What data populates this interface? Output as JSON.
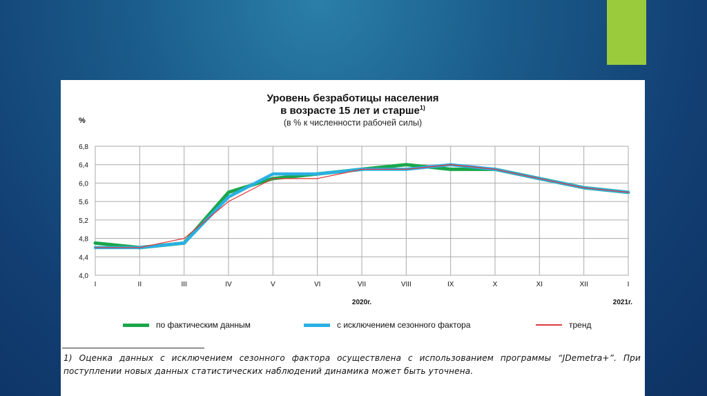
{
  "slide": {
    "accent_color": "#9acb3c",
    "background_color": "#1a5b8a"
  },
  "header": {
    "title_line1": "Уровень безработицы населения",
    "title_line2": "в возрасте 15 лет и старше",
    "title_footnote_mark": "1)",
    "subtitle": "(в % к численности рабочей силы)",
    "unit": "%"
  },
  "chart_data": {
    "type": "line",
    "categories": [
      "I",
      "II",
      "III",
      "IV",
      "V",
      "VI",
      "VII",
      "VIII",
      "IX",
      "X",
      "XI",
      "XII",
      "I"
    ],
    "year_labels": [
      {
        "label": "2020г.",
        "category_index": 6
      },
      {
        "label": "2021г.",
        "category_index": 12
      }
    ],
    "ylim": [
      4.0,
      6.8
    ],
    "yticks": [
      "4,0",
      "4,4",
      "4,8",
      "5,2",
      "5,6",
      "6,0",
      "6,4",
      "6,8"
    ],
    "ytick_values": [
      4.0,
      4.4,
      4.8,
      5.2,
      5.6,
      6.0,
      6.4,
      6.8
    ],
    "grid": true,
    "legend_position": "bottom",
    "series": [
      {
        "name": "по фактическим данным",
        "color": "#1aa64a",
        "values": [
          4.7,
          4.6,
          4.7,
          5.8,
          6.1,
          6.2,
          6.3,
          6.4,
          6.3,
          6.3,
          6.1,
          5.9,
          5.8
        ]
      },
      {
        "name": "с исключением сезонного фактора",
        "color": "#2ab0e4",
        "values": [
          4.6,
          4.6,
          4.7,
          5.7,
          6.2,
          6.2,
          6.3,
          6.3,
          6.4,
          6.3,
          6.1,
          5.9,
          5.8
        ]
      },
      {
        "name": "тренд",
        "color": "#e03a3a",
        "values": [
          4.6,
          4.6,
          4.8,
          5.6,
          6.1,
          6.1,
          6.3,
          6.3,
          6.4,
          6.3,
          6.1,
          5.9,
          5.8
        ]
      }
    ]
  },
  "footnote": {
    "text": "1) Оценка данных с исключением сезонного фактора осуществлена с использованием программы “JDemetra+”. При поступлении новых данных статистических наблюдений динамика может быть уточнена."
  }
}
